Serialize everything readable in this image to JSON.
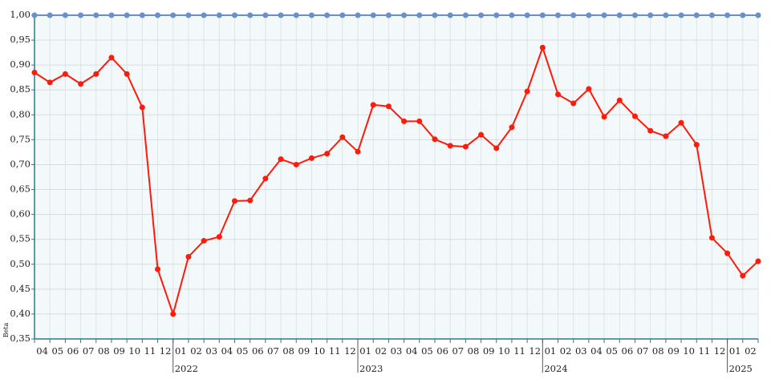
{
  "chart_data": {
    "type": "line",
    "ylabel": "Beta",
    "categories": [
      "04",
      "05",
      "06",
      "07",
      "08",
      "09",
      "10",
      "11",
      "12",
      "01",
      "02",
      "03",
      "04",
      "05",
      "06",
      "07",
      "08",
      "09",
      "10",
      "11",
      "12",
      "01",
      "02",
      "03",
      "04",
      "05",
      "06",
      "07",
      "08",
      "09",
      "10",
      "11",
      "12",
      "01",
      "02",
      "03",
      "04",
      "05",
      "06",
      "07",
      "08",
      "09",
      "10",
      "11",
      "12",
      "01",
      "02",
      null
    ],
    "year_groups": [
      {
        "label": "2022",
        "from": 9
      },
      {
        "label": "2023",
        "from": 21
      },
      {
        "label": "2024",
        "from": 33
      },
      {
        "label": "2025",
        "from": 45
      }
    ],
    "series": [
      {
        "color": "#6b8fc7",
        "values": [
          1,
          1,
          1,
          1,
          1,
          1,
          1,
          1,
          1,
          1,
          1,
          1,
          1,
          1,
          1,
          1,
          1,
          1,
          1,
          1,
          1,
          1,
          1,
          1,
          1,
          1,
          1,
          1,
          1,
          1,
          1,
          1,
          1,
          1,
          1,
          1,
          1,
          1,
          1,
          1,
          1,
          1,
          1,
          1,
          1,
          1,
          1,
          1
        ]
      },
      {
        "color": "#ff1a0a",
        "values": [
          0.885,
          0.865,
          0.882,
          0.862,
          0.882,
          0.915,
          0.882,
          0.815,
          0.49,
          0.4,
          0.515,
          0.547,
          0.555,
          0.627,
          0.628,
          0.672,
          0.711,
          0.7,
          0.713,
          0.722,
          0.755,
          0.726,
          0.82,
          0.817,
          0.787,
          0.787,
          0.751,
          0.738,
          0.736,
          0.76,
          0.733,
          0.775,
          0.847,
          0.935,
          0.841,
          0.823,
          0.852,
          0.796,
          0.829,
          0.797,
          0.768,
          0.757,
          0.784,
          0.74,
          0.553,
          0.522,
          0.477,
          0.506
        ]
      }
    ],
    "ylim": [
      0.35,
      1.0
    ],
    "yticks": [
      {
        "value": 0.35,
        "label": "0,35"
      },
      {
        "value": 0.4,
        "label": "0,40"
      },
      {
        "value": 0.45,
        "label": "0,45"
      },
      {
        "value": 0.5,
        "label": "0,50"
      },
      {
        "value": 0.55,
        "label": "0,55"
      },
      {
        "value": 0.6,
        "label": "0,60"
      },
      {
        "value": 0.65,
        "label": "0,65"
      },
      {
        "value": 0.7,
        "label": "0,70"
      },
      {
        "value": 0.75,
        "label": "0,75"
      },
      {
        "value": 0.8,
        "label": "0,80"
      },
      {
        "value": 0.85,
        "label": "0,85"
      },
      {
        "value": 0.9,
        "label": "0,90"
      },
      {
        "value": 0.95,
        "label": "0,95"
      },
      {
        "value": 1.0,
        "label": "1,00"
      }
    ],
    "grid": true
  }
}
